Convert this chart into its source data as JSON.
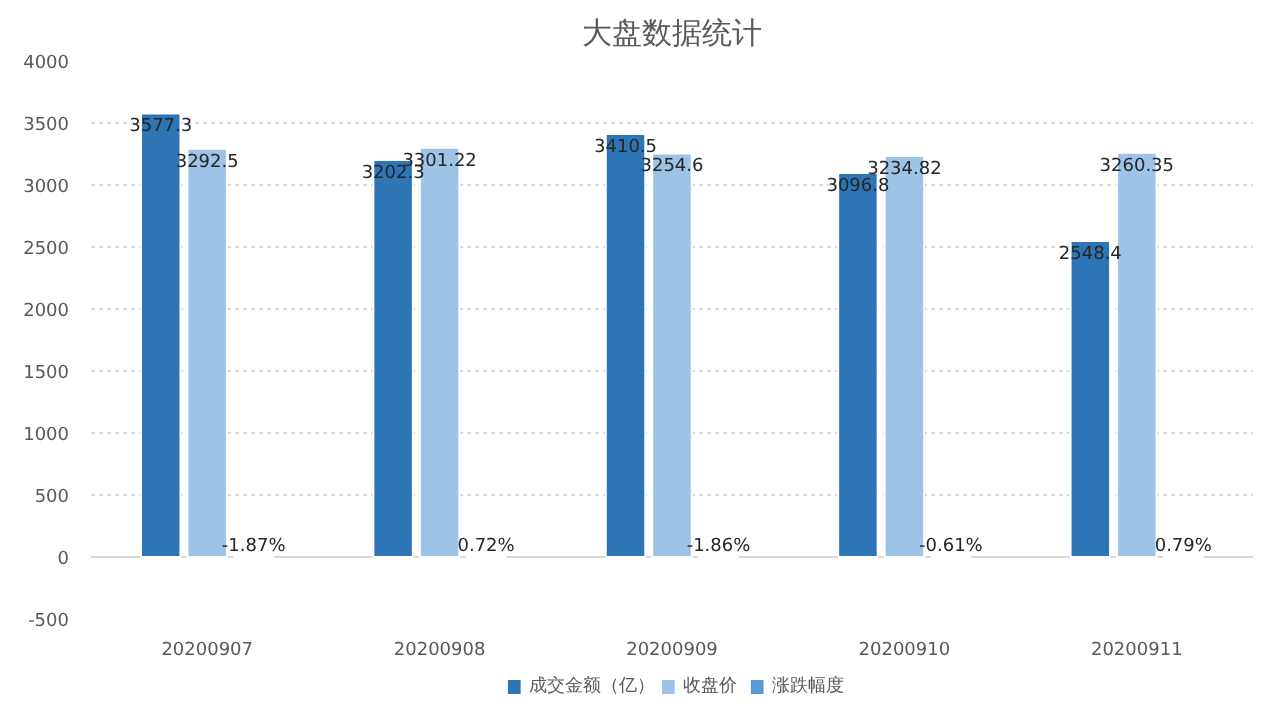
{
  "chart_data": {
    "type": "bar",
    "title": "大盘数据统计",
    "categories": [
      "20200907",
      "20200908",
      "20200909",
      "20200910",
      "20200911"
    ],
    "series": [
      {
        "name": "成交金额（亿）",
        "color": "#2e75b6",
        "values": [
          3577.3,
          3202.3,
          3410.5,
          3096.8,
          2548.4
        ],
        "value_labels": [
          "3577.3",
          "3202.3",
          "3410.5",
          "3096.8",
          "2548.4"
        ]
      },
      {
        "name": "收盘价",
        "color": "#9dc3e6",
        "values": [
          3292.5,
          3301.22,
          3254.6,
          3234.82,
          3260.35
        ],
        "value_labels": [
          "3292.5",
          "3301.22",
          "3254.6",
          "3234.82",
          "3260.35"
        ]
      },
      {
        "name": "涨跌幅度",
        "color": "#5b9bd5",
        "values": [
          -1.87,
          0.72,
          -1.86,
          -0.61,
          0.79
        ],
        "value_labels": [
          "-1.87%",
          "0.72%",
          "-1.86%",
          "-0.61%",
          "0.79%"
        ]
      }
    ],
    "ylim": [
      -500,
      4000
    ],
    "yticks": [
      -500,
      0,
      500,
      1000,
      1500,
      2000,
      2500,
      3000,
      3500,
      4000
    ],
    "grid": "y",
    "legend": "bottom"
  }
}
